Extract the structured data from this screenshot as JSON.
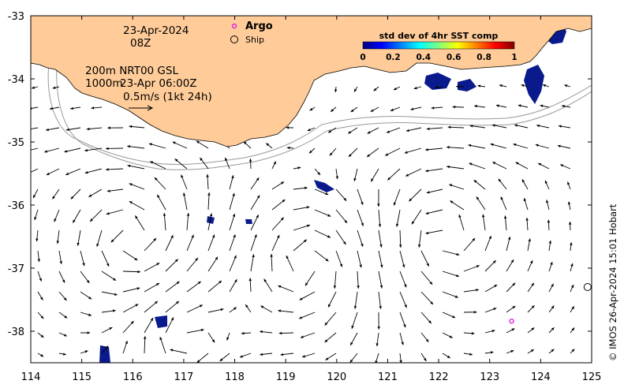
{
  "map": {
    "lon_range": [
      114,
      125
    ],
    "lat_range": [
      -38.5,
      -33
    ],
    "lon_ticks": [
      "114",
      "115",
      "116",
      "117",
      "118",
      "119",
      "120",
      "121",
      "122",
      "123",
      "124",
      "125"
    ],
    "lat_ticks": [
      "-33",
      "-34",
      "-35",
      "-36",
      "-37",
      "-38"
    ],
    "land_color": "#ffcc99",
    "ocean_color": "#ffffff",
    "sst_patch_color": "#0a1a8c"
  },
  "info": {
    "date": "23-Apr-2024",
    "hour": "08Z",
    "contour_line1": "200m  NRT00 GSL",
    "contour_line2_depth": "1000m",
    "contour_line2_time": "23-Apr 06:00Z",
    "scale_label": "0.5m/s (1kt 24h)"
  },
  "legend": {
    "argo_label": "Argo",
    "argo_color": "#e020e0",
    "ship_label": "Ship"
  },
  "colorbar": {
    "title": "std dev of 4hr SST comp",
    "ticks": [
      "0",
      "0.2",
      "0.4",
      "0.6",
      "0.8",
      "1"
    ],
    "colormap": [
      "#00007f",
      "#0000ff",
      "#007fff",
      "#00ffff",
      "#7fff7f",
      "#ffff00",
      "#ff7f00",
      "#ff0000",
      "#7f0000"
    ]
  },
  "markers": {
    "argo": {
      "lon": 123.43,
      "lat": -37.84
    },
    "ship": {
      "lon": 124.92,
      "lat": -37.3
    }
  },
  "credit": "© IMOS 26-Apr-2024 15:01 Hobart"
}
